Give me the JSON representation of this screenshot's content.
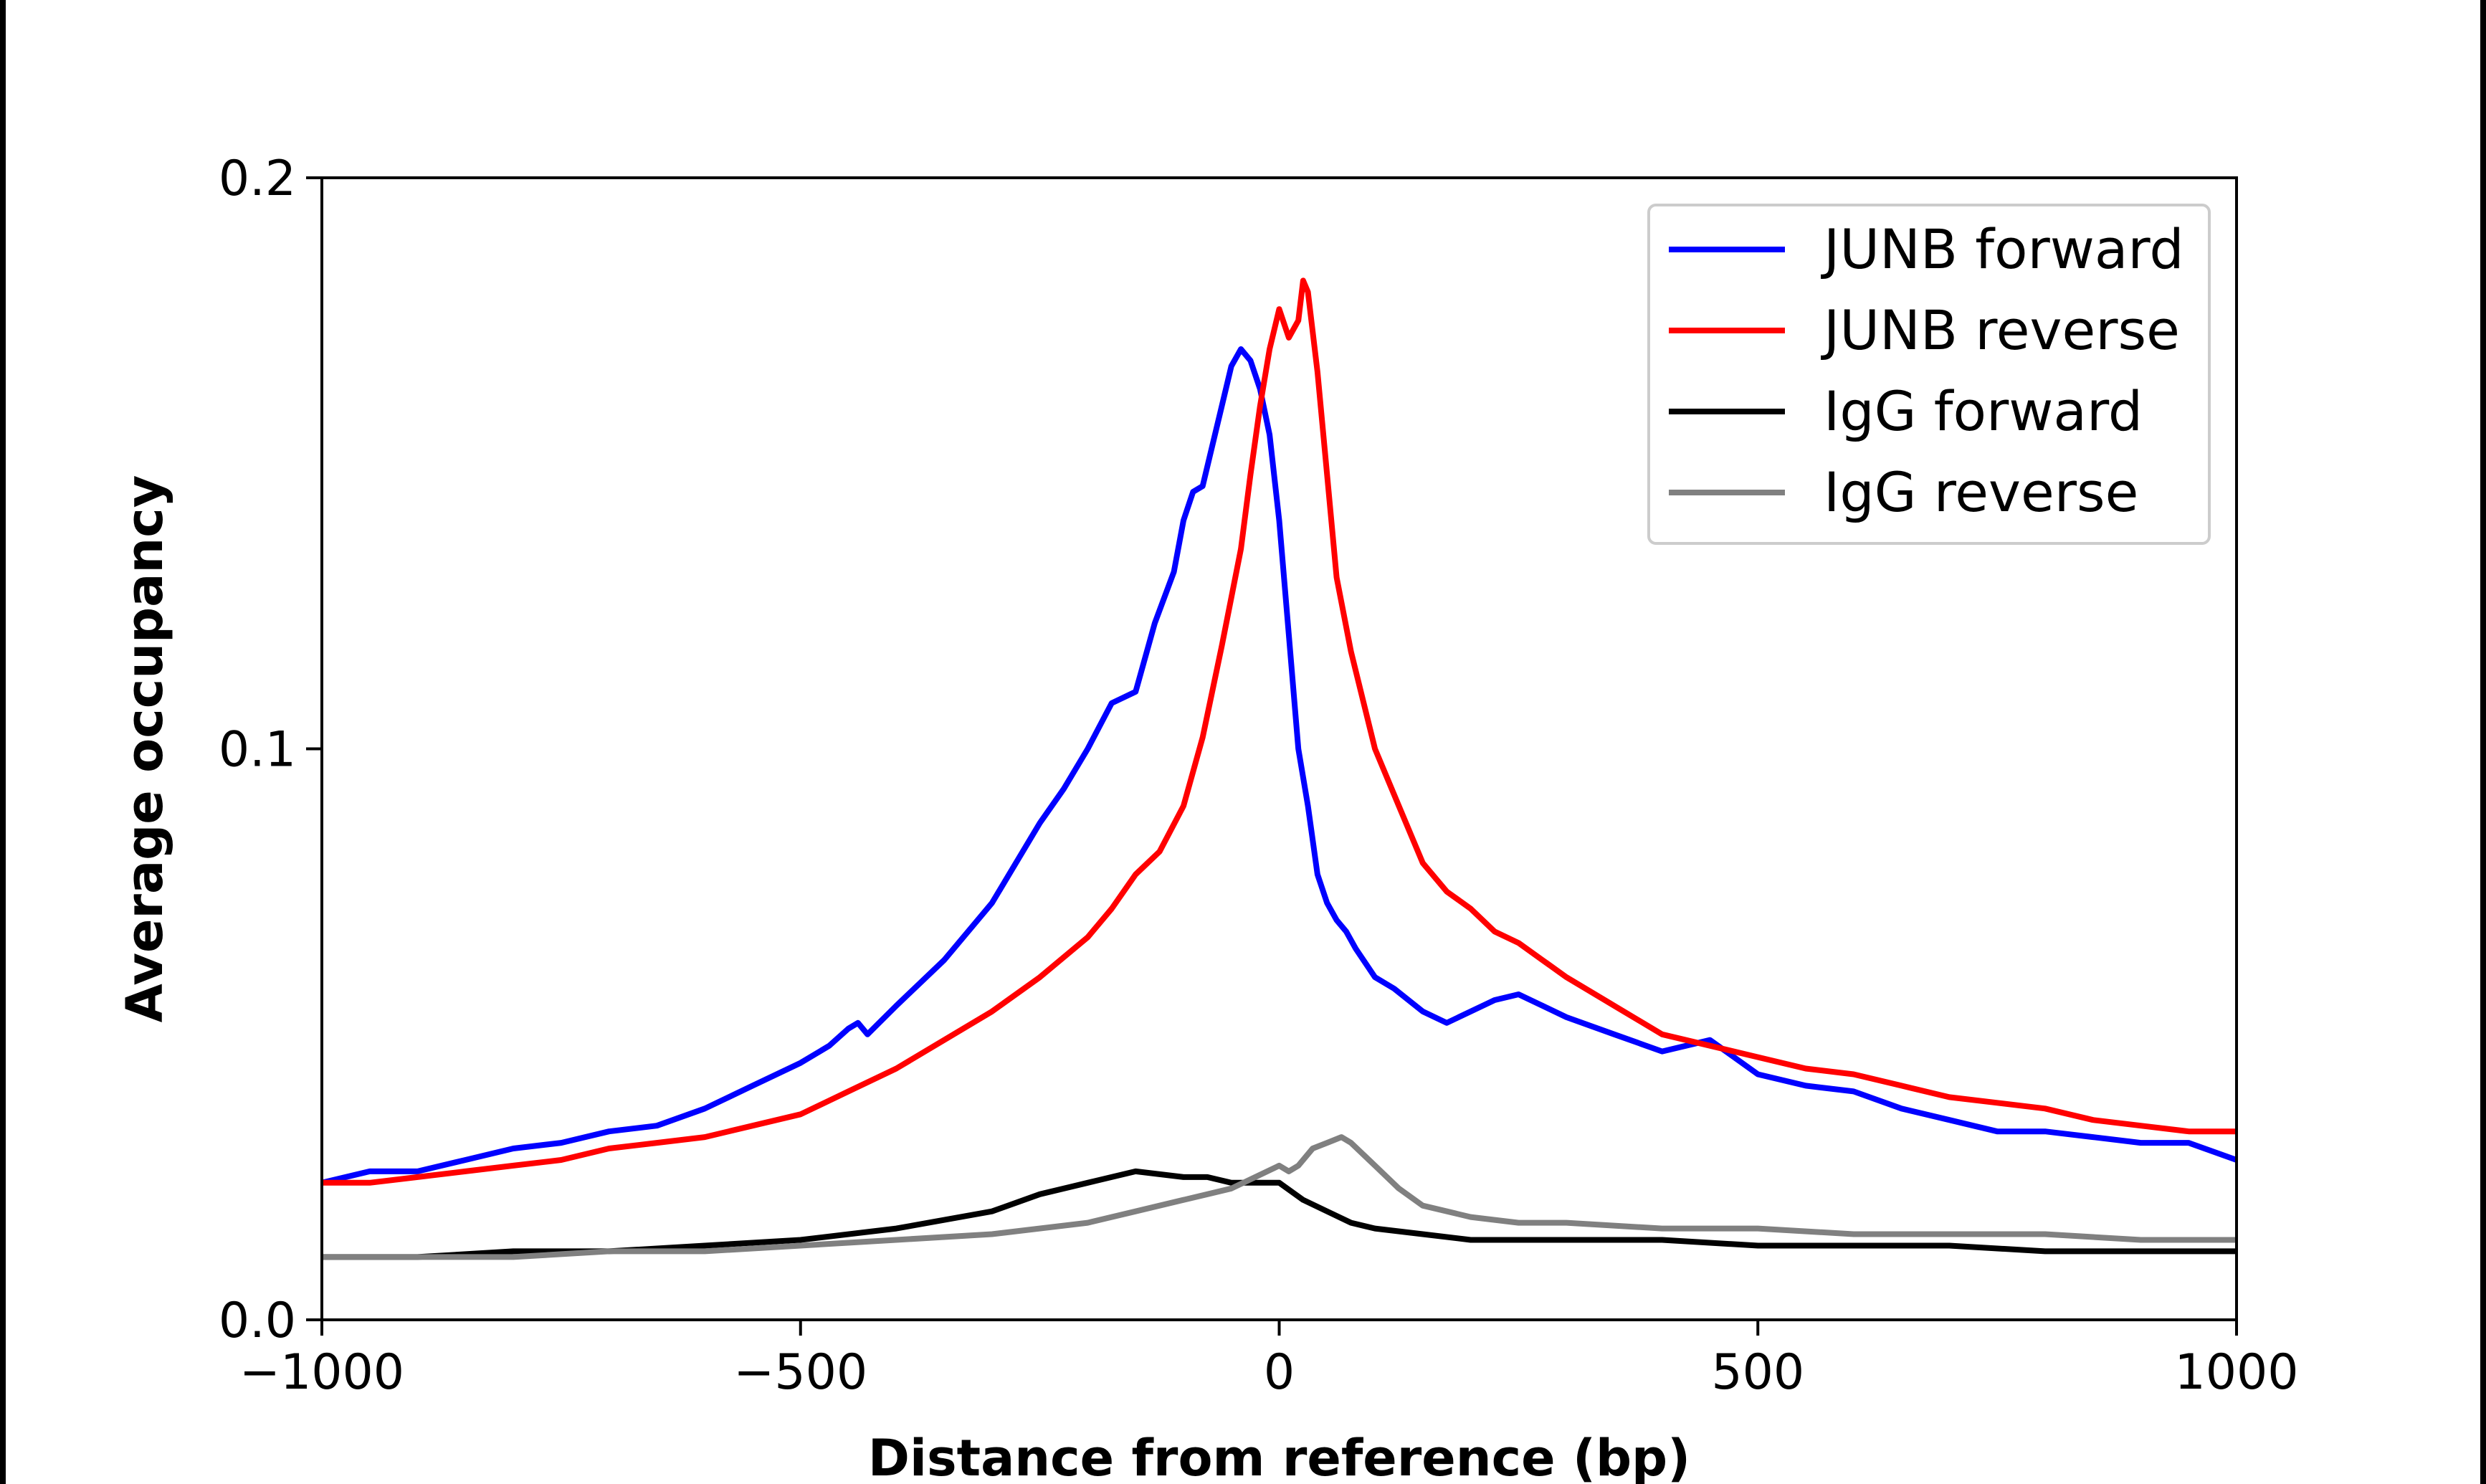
{
  "chart_data": {
    "type": "line",
    "xlabel": "Distance from reference (bp)",
    "ylabel": "Average occupancy",
    "xlim": [
      -1000,
      1000
    ],
    "ylim": [
      0,
      0.2
    ],
    "xticks": [
      -1000,
      -500,
      0,
      500,
      1000
    ],
    "xtick_labels": [
      "−1000",
      "−500",
      "0",
      "500",
      "1000"
    ],
    "yticks": [
      0,
      0.1,
      0.2
    ],
    "ytick_labels": [
      "0.0",
      "0.1",
      "0.2"
    ],
    "grid": false,
    "legend_position": "top-right",
    "series": [
      {
        "name": "JUNB forward",
        "color": "#0000ff",
        "x": [
          -1000,
          -950,
          -900,
          -850,
          -800,
          -750,
          -700,
          -650,
          -600,
          -550,
          -500,
          -470,
          -450,
          -440,
          -430,
          -400,
          -350,
          -300,
          -250,
          -225,
          -200,
          -175,
          -150,
          -130,
          -110,
          -100,
          -90,
          -80,
          -70,
          -60,
          -50,
          -40,
          -30,
          -20,
          -10,
          0,
          10,
          20,
          30,
          40,
          50,
          60,
          70,
          80,
          100,
          120,
          150,
          175,
          200,
          225,
          250,
          275,
          300,
          350,
          400,
          450,
          500,
          550,
          600,
          650,
          700,
          750,
          800,
          850,
          900,
          950,
          1000
        ],
        "values": [
          0.024,
          0.026,
          0.026,
          0.028,
          0.03,
          0.031,
          0.033,
          0.034,
          0.037,
          0.041,
          0.045,
          0.048,
          0.051,
          0.052,
          0.05,
          0.055,
          0.063,
          0.073,
          0.087,
          0.093,
          0.1,
          0.108,
          0.11,
          0.122,
          0.131,
          0.14,
          0.145,
          0.146,
          0.153,
          0.16,
          0.167,
          0.17,
          0.168,
          0.163,
          0.155,
          0.14,
          0.12,
          0.1,
          0.09,
          0.078,
          0.073,
          0.07,
          0.068,
          0.065,
          0.06,
          0.058,
          0.054,
          0.052,
          0.054,
          0.056,
          0.057,
          0.055,
          0.053,
          0.05,
          0.047,
          0.049,
          0.043,
          0.041,
          0.04,
          0.037,
          0.035,
          0.033,
          0.033,
          0.032,
          0.031,
          0.031,
          0.028
        ]
      },
      {
        "name": "JUNB reverse",
        "color": "#ff0000",
        "x": [
          -1000,
          -950,
          -900,
          -850,
          -800,
          -750,
          -700,
          -650,
          -600,
          -550,
          -500,
          -450,
          -400,
          -350,
          -300,
          -250,
          -200,
          -175,
          -150,
          -125,
          -100,
          -80,
          -60,
          -40,
          -30,
          -20,
          -10,
          0,
          10,
          20,
          25,
          30,
          40,
          50,
          60,
          75,
          100,
          125,
          150,
          175,
          200,
          225,
          250,
          275,
          300,
          350,
          400,
          450,
          500,
          550,
          600,
          650,
          700,
          750,
          800,
          850,
          900,
          950,
          1000
        ],
        "values": [
          0.024,
          0.024,
          0.025,
          0.026,
          0.027,
          0.028,
          0.03,
          0.031,
          0.032,
          0.034,
          0.036,
          0.04,
          0.044,
          0.049,
          0.054,
          0.06,
          0.067,
          0.072,
          0.078,
          0.082,
          0.09,
          0.102,
          0.118,
          0.135,
          0.148,
          0.16,
          0.17,
          0.177,
          0.172,
          0.175,
          0.182,
          0.18,
          0.166,
          0.148,
          0.13,
          0.117,
          0.1,
          0.09,
          0.08,
          0.075,
          0.072,
          0.068,
          0.066,
          0.063,
          0.06,
          0.055,
          0.05,
          0.048,
          0.046,
          0.044,
          0.043,
          0.041,
          0.039,
          0.038,
          0.037,
          0.035,
          0.034,
          0.033,
          0.033
        ]
      },
      {
        "name": "IgG forward",
        "color": "#000000",
        "x": [
          -1000,
          -900,
          -800,
          -700,
          -600,
          -500,
          -400,
          -300,
          -250,
          -200,
          -150,
          -100,
          -75,
          -50,
          -25,
          0,
          25,
          50,
          75,
          100,
          150,
          200,
          250,
          300,
          400,
          500,
          600,
          700,
          800,
          900,
          1000
        ],
        "values": [
          0.011,
          0.011,
          0.012,
          0.012,
          0.013,
          0.014,
          0.016,
          0.019,
          0.022,
          0.024,
          0.026,
          0.025,
          0.025,
          0.024,
          0.024,
          0.024,
          0.021,
          0.019,
          0.017,
          0.016,
          0.015,
          0.014,
          0.014,
          0.014,
          0.014,
          0.013,
          0.013,
          0.013,
          0.012,
          0.012,
          0.012
        ]
      },
      {
        "name": "IgG reverse",
        "color": "#808080",
        "x": [
          -1000,
          -900,
          -800,
          -700,
          -600,
          -500,
          -400,
          -300,
          -200,
          -150,
          -100,
          -75,
          -50,
          -25,
          0,
          10,
          20,
          35,
          50,
          65,
          75,
          100,
          125,
          150,
          200,
          250,
          300,
          400,
          500,
          600,
          700,
          800,
          900,
          1000
        ],
        "values": [
          0.011,
          0.011,
          0.011,
          0.012,
          0.012,
          0.013,
          0.014,
          0.015,
          0.017,
          0.019,
          0.021,
          0.022,
          0.023,
          0.025,
          0.027,
          0.026,
          0.027,
          0.03,
          0.031,
          0.032,
          0.031,
          0.027,
          0.023,
          0.02,
          0.018,
          0.017,
          0.017,
          0.016,
          0.016,
          0.015,
          0.015,
          0.015,
          0.014,
          0.014
        ]
      }
    ]
  }
}
